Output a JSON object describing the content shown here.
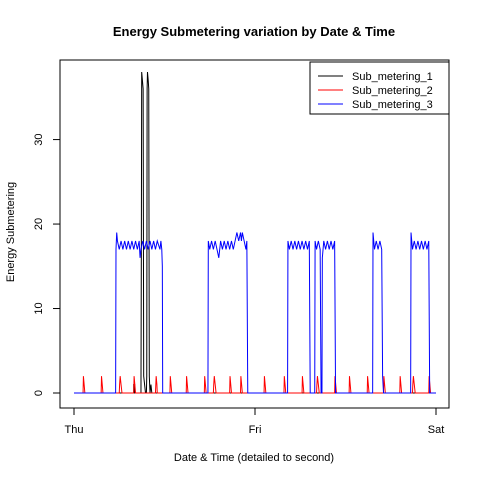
{
  "chart_data": {
    "type": "line",
    "title": "Energy Submetering variation by Date & Time",
    "xlabel": "Date & Time (detailed to second)",
    "ylabel": "Energy Submetering",
    "x_unit": "days since Thu 00:00",
    "xlim": [
      0,
      2
    ],
    "ylim": [
      0,
      38
    ],
    "x_ticks": [
      {
        "value": 0,
        "label": "Thu"
      },
      {
        "value": 1,
        "label": "Fri"
      },
      {
        "value": 2,
        "label": "Sat"
      }
    ],
    "y_ticks": [
      {
        "value": 0,
        "label": "0"
      },
      {
        "value": 10,
        "label": "10"
      },
      {
        "value": 20,
        "label": "20"
      },
      {
        "value": 30,
        "label": "30"
      }
    ],
    "grid": false,
    "legend_position": "top-right",
    "series": [
      {
        "name": "Sub_metering_1",
        "color": "#000000",
        "points": [
          [
            0,
            0
          ],
          [
            0.33,
            0
          ],
          [
            0.33,
            1
          ],
          [
            0.335,
            1
          ],
          [
            0.335,
            0
          ],
          [
            0.37,
            0
          ],
          [
            0.372,
            16
          ],
          [
            0.374,
            38
          ],
          [
            0.378,
            37
          ],
          [
            0.382,
            36
          ],
          [
            0.385,
            2
          ],
          [
            0.39,
            1
          ],
          [
            0.395,
            0
          ],
          [
            0.4,
            0
          ],
          [
            0.402,
            2
          ],
          [
            0.404,
            36
          ],
          [
            0.406,
            38
          ],
          [
            0.41,
            37
          ],
          [
            0.413,
            36
          ],
          [
            0.416,
            2
          ],
          [
            0.42,
            0
          ],
          [
            0.425,
            1
          ],
          [
            0.43,
            0
          ],
          [
            2,
            0
          ]
        ]
      },
      {
        "name": "Sub_metering_2",
        "color": "#ff0000",
        "points": [
          [
            0,
            0
          ],
          [
            0.05,
            0
          ],
          [
            0.052,
            2
          ],
          [
            0.056,
            1
          ],
          [
            0.06,
            0
          ],
          [
            0.15,
            0
          ],
          [
            0.152,
            2
          ],
          [
            0.156,
            1
          ],
          [
            0.16,
            0
          ],
          [
            0.25,
            0
          ],
          [
            0.252,
            1
          ],
          [
            0.255,
            2
          ],
          [
            0.26,
            1
          ],
          [
            0.265,
            0
          ],
          [
            0.33,
            0
          ],
          [
            0.332,
            2
          ],
          [
            0.336,
            1
          ],
          [
            0.34,
            0
          ],
          [
            0.45,
            0
          ],
          [
            0.452,
            1
          ],
          [
            0.454,
            2
          ],
          [
            0.458,
            1
          ],
          [
            0.46,
            0
          ],
          [
            0.53,
            0
          ],
          [
            0.532,
            2
          ],
          [
            0.536,
            1
          ],
          [
            0.54,
            0
          ],
          [
            0.62,
            0
          ],
          [
            0.622,
            2
          ],
          [
            0.626,
            1
          ],
          [
            0.63,
            0
          ],
          [
            0.72,
            0
          ],
          [
            0.722,
            2
          ],
          [
            0.726,
            1
          ],
          [
            0.73,
            0
          ],
          [
            0.77,
            0
          ],
          [
            0.772,
            1
          ],
          [
            0.775,
            2
          ],
          [
            0.78,
            1
          ],
          [
            0.785,
            0
          ],
          [
            0.86,
            0
          ],
          [
            0.862,
            2
          ],
          [
            0.866,
            1
          ],
          [
            0.87,
            0
          ],
          [
            0.92,
            0
          ],
          [
            0.922,
            2
          ],
          [
            0.926,
            1
          ],
          [
            0.93,
            0
          ],
          [
            1.05,
            0
          ],
          [
            1.052,
            2
          ],
          [
            1.056,
            1
          ],
          [
            1.06,
            0
          ],
          [
            1.16,
            0
          ],
          [
            1.162,
            2
          ],
          [
            1.166,
            1
          ],
          [
            1.17,
            0
          ],
          [
            1.26,
            0
          ],
          [
            1.262,
            2
          ],
          [
            1.266,
            1
          ],
          [
            1.27,
            0
          ],
          [
            1.34,
            0
          ],
          [
            1.342,
            1
          ],
          [
            1.345,
            2
          ],
          [
            1.35,
            1
          ],
          [
            1.355,
            0
          ],
          [
            1.44,
            0
          ],
          [
            1.442,
            2
          ],
          [
            1.446,
            1
          ],
          [
            1.45,
            0
          ],
          [
            1.52,
            0
          ],
          [
            1.522,
            2
          ],
          [
            1.526,
            1
          ],
          [
            1.53,
            0
          ],
          [
            1.62,
            0
          ],
          [
            1.622,
            2
          ],
          [
            1.626,
            1
          ],
          [
            1.63,
            0
          ],
          [
            1.71,
            0
          ],
          [
            1.712,
            2
          ],
          [
            1.716,
            1
          ],
          [
            1.72,
            0
          ],
          [
            1.8,
            0
          ],
          [
            1.802,
            2
          ],
          [
            1.806,
            1
          ],
          [
            1.81,
            0
          ],
          [
            1.87,
            0
          ],
          [
            1.872,
            1
          ],
          [
            1.875,
            2
          ],
          [
            1.88,
            1
          ],
          [
            1.885,
            0
          ],
          [
            1.96,
            0
          ],
          [
            1.962,
            2
          ],
          [
            1.966,
            1
          ],
          [
            1.97,
            0
          ],
          [
            2,
            0
          ]
        ]
      },
      {
        "name": "Sub_metering_3",
        "color": "#0000ff",
        "points": [
          [
            0,
            0
          ],
          [
            0.23,
            0
          ],
          [
            0.232,
            17
          ],
          [
            0.236,
            19
          ],
          [
            0.24,
            18
          ],
          [
            0.25,
            17
          ],
          [
            0.26,
            18
          ],
          [
            0.27,
            17
          ],
          [
            0.28,
            18
          ],
          [
            0.29,
            17
          ],
          [
            0.3,
            18
          ],
          [
            0.31,
            17
          ],
          [
            0.32,
            18
          ],
          [
            0.33,
            17
          ],
          [
            0.34,
            18
          ],
          [
            0.35,
            17
          ],
          [
            0.36,
            18
          ],
          [
            0.365,
            16
          ],
          [
            0.37,
            17
          ],
          [
            0.38,
            18
          ],
          [
            0.39,
            17
          ],
          [
            0.4,
            18
          ],
          [
            0.41,
            17
          ],
          [
            0.42,
            18
          ],
          [
            0.43,
            17
          ],
          [
            0.44,
            18
          ],
          [
            0.45,
            17
          ],
          [
            0.46,
            18
          ],
          [
            0.475,
            17
          ],
          [
            0.48,
            18
          ],
          [
            0.485,
            17
          ],
          [
            0.488,
            15
          ],
          [
            0.49,
            0
          ],
          [
            0.74,
            0
          ],
          [
            0.742,
            18
          ],
          [
            0.75,
            17
          ],
          [
            0.76,
            18
          ],
          [
            0.77,
            17
          ],
          [
            0.78,
            18
          ],
          [
            0.79,
            17
          ],
          [
            0.8,
            16
          ],
          [
            0.81,
            18
          ],
          [
            0.82,
            17
          ],
          [
            0.83,
            18
          ],
          [
            0.84,
            17
          ],
          [
            0.85,
            18
          ],
          [
            0.86,
            17
          ],
          [
            0.87,
            18
          ],
          [
            0.88,
            17
          ],
          [
            0.89,
            18
          ],
          [
            0.9,
            19
          ],
          [
            0.91,
            18
          ],
          [
            0.92,
            19
          ],
          [
            0.925,
            18
          ],
          [
            0.93,
            19
          ],
          [
            0.94,
            18
          ],
          [
            0.95,
            17
          ],
          [
            0.955,
            18
          ],
          [
            0.96,
            0
          ],
          [
            1.18,
            0
          ],
          [
            1.182,
            18
          ],
          [
            1.19,
            17
          ],
          [
            1.2,
            18
          ],
          [
            1.21,
            17
          ],
          [
            1.22,
            18
          ],
          [
            1.23,
            17
          ],
          [
            1.24,
            18
          ],
          [
            1.25,
            17
          ],
          [
            1.26,
            18
          ],
          [
            1.27,
            17
          ],
          [
            1.28,
            18
          ],
          [
            1.29,
            17
          ],
          [
            1.3,
            18
          ],
          [
            1.305,
            0
          ],
          [
            1.33,
            0
          ],
          [
            1.332,
            18
          ],
          [
            1.34,
            17
          ],
          [
            1.35,
            18
          ],
          [
            1.36,
            17
          ],
          [
            1.365,
            0
          ],
          [
            1.37,
            0
          ],
          [
            1.372,
            16
          ],
          [
            1.38,
            18
          ],
          [
            1.39,
            17
          ],
          [
            1.4,
            18
          ],
          [
            1.41,
            17
          ],
          [
            1.42,
            18
          ],
          [
            1.43,
            17
          ],
          [
            1.44,
            18
          ],
          [
            1.445,
            0
          ],
          [
            1.65,
            0
          ],
          [
            1.652,
            19
          ],
          [
            1.66,
            17
          ],
          [
            1.67,
            18
          ],
          [
            1.68,
            17
          ],
          [
            1.69,
            18
          ],
          [
            1.7,
            17
          ],
          [
            1.705,
            2
          ],
          [
            1.71,
            0
          ],
          [
            1.73,
            0
          ],
          [
            1.75,
            0
          ],
          [
            1.86,
            0
          ],
          [
            1.862,
            19
          ],
          [
            1.87,
            17
          ],
          [
            1.88,
            18
          ],
          [
            1.89,
            17
          ],
          [
            1.9,
            18
          ],
          [
            1.91,
            17
          ],
          [
            1.92,
            18
          ],
          [
            1.93,
            17
          ],
          [
            1.94,
            18
          ],
          [
            1.95,
            17
          ],
          [
            1.96,
            18
          ],
          [
            1.965,
            0
          ],
          [
            2,
            0
          ]
        ]
      }
    ]
  }
}
